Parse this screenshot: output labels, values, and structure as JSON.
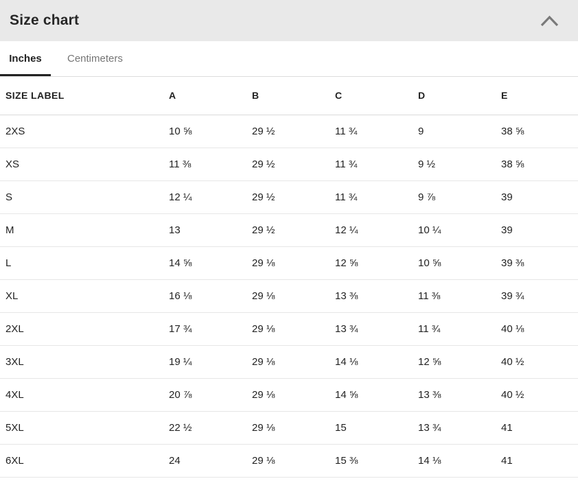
{
  "panel": {
    "title": "Size chart",
    "collapse_icon": "chevron-up"
  },
  "tabs": [
    {
      "label": "Inches",
      "active": true
    },
    {
      "label": "Centimeters",
      "active": false
    }
  ],
  "colors": {
    "header_bg": "#e9e9e9",
    "text": "#222222",
    "inactive_tab_text": "#757575",
    "active_tab_underline": "#222222",
    "chevron": "#7a7a7a",
    "row_border": "#e6e6e6"
  },
  "table": {
    "columns": [
      "SIZE LABEL",
      "A",
      "B",
      "C",
      "D",
      "E"
    ],
    "rows": [
      {
        "size": "2XS",
        "values": [
          "10 ⅝",
          "29 ½",
          "11 ¾",
          "9",
          "38 ⅝"
        ]
      },
      {
        "size": "XS",
        "values": [
          "11 ⅜",
          "29 ½",
          "11 ¾",
          "9 ½",
          "38 ⅝"
        ]
      },
      {
        "size": "S",
        "values": [
          "12 ¼",
          "29 ½",
          "11 ¾",
          "9 ⅞",
          "39"
        ]
      },
      {
        "size": "M",
        "values": [
          "13",
          "29 ½",
          "12 ¼",
          "10 ¼",
          "39"
        ]
      },
      {
        "size": "L",
        "values": [
          "14 ⅝",
          "29 ⅛",
          "12 ⅝",
          "10 ⅝",
          "39 ⅜"
        ]
      },
      {
        "size": "XL",
        "values": [
          "16 ⅛",
          "29 ⅛",
          "13 ⅜",
          "11 ⅜",
          "39 ¾"
        ]
      },
      {
        "size": "2XL",
        "values": [
          "17 ¾",
          "29 ⅛",
          "13 ¾",
          "11 ¾",
          "40 ⅛"
        ]
      },
      {
        "size": "3XL",
        "values": [
          "19 ¼",
          "29 ⅛",
          "14 ⅛",
          "12 ⅝",
          "40 ½"
        ]
      },
      {
        "size": "4XL",
        "values": [
          "20 ⅞",
          "29 ⅛",
          "14 ⅝",
          "13 ⅜",
          "40 ½"
        ]
      },
      {
        "size": "5XL",
        "values": [
          "22 ½",
          "29 ⅛",
          "15",
          "13 ¾",
          "41"
        ]
      },
      {
        "size": "6XL",
        "values": [
          "24",
          "29 ⅛",
          "15 ⅜",
          "14 ⅛",
          "41"
        ]
      }
    ]
  }
}
